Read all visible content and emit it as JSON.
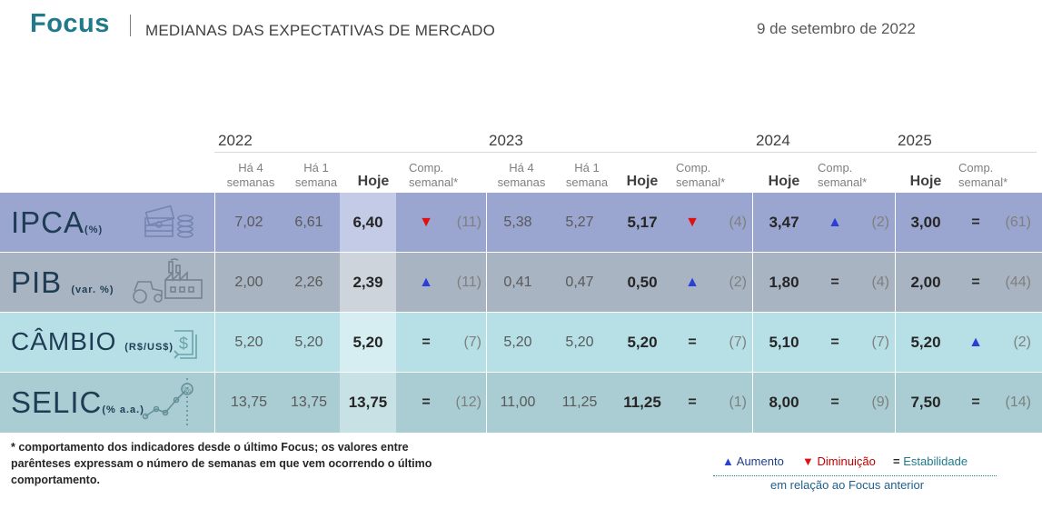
{
  "header": {
    "brand": "Focus",
    "subtitle": "MEDIANAS DAS EXPECTATIVAS DE MERCADO",
    "date": "9 de setembro de 2022"
  },
  "years": {
    "y2022": "2022",
    "y2023": "2023",
    "y2024": "2024",
    "y2025": "2025"
  },
  "columns": {
    "ha4": "Há 4 semanas",
    "ha4_a": "Há 4",
    "ha4_b": "semanas",
    "ha1_a": "Há 1",
    "ha1_b": "semana",
    "hoje": "Hoje",
    "comp_a": "Comp.",
    "comp_b": "semanal*"
  },
  "rows": [
    {
      "name": "IPCA",
      "unit": "(%)",
      "y2022": {
        "ha4": "7,02",
        "ha1": "6,61",
        "hoje": "6,40",
        "trend": "down",
        "weeks": "(11)"
      },
      "y2023": {
        "ha4": "5,38",
        "ha1": "5,27",
        "hoje": "5,17",
        "trend": "down",
        "weeks": "(4)"
      },
      "y2024": {
        "hoje": "3,47",
        "trend": "up",
        "weeks": "(2)"
      },
      "y2025": {
        "hoje": "3,00",
        "trend": "eq",
        "weeks": "(61)"
      }
    },
    {
      "name": "PIB",
      "unit": "(var. %)",
      "y2022": {
        "ha4": "2,00",
        "ha1": "2,26",
        "hoje": "2,39",
        "trend": "up",
        "weeks": "(11)"
      },
      "y2023": {
        "ha4": "0,41",
        "ha1": "0,47",
        "hoje": "0,50",
        "trend": "up",
        "weeks": "(2)"
      },
      "y2024": {
        "hoje": "1,80",
        "trend": "eq",
        "weeks": "(4)"
      },
      "y2025": {
        "hoje": "2,00",
        "trend": "eq",
        "weeks": "(44)"
      }
    },
    {
      "name": "CÂMBIO",
      "unit": "(R$/US$)",
      "y2022": {
        "ha4": "5,20",
        "ha1": "5,20",
        "hoje": "5,20",
        "trend": "eq",
        "weeks": "(7)"
      },
      "y2023": {
        "ha4": "5,20",
        "ha1": "5,20",
        "hoje": "5,20",
        "trend": "eq",
        "weeks": "(7)"
      },
      "y2024": {
        "hoje": "5,10",
        "trend": "eq",
        "weeks": "(7)"
      },
      "y2025": {
        "hoje": "5,20",
        "trend": "up",
        "weeks": "(2)"
      }
    },
    {
      "name": "SELIC",
      "unit": "(% a.a.)",
      "y2022": {
        "ha4": "13,75",
        "ha1": "13,75",
        "hoje": "13,75",
        "trend": "eq",
        "weeks": "(12)"
      },
      "y2023": {
        "ha4": "11,00",
        "ha1": "11,25",
        "hoje": "11,25",
        "trend": "eq",
        "weeks": "(1)"
      },
      "y2024": {
        "hoje": "8,00",
        "trend": "eq",
        "weeks": "(9)"
      },
      "y2025": {
        "hoje": "7,50",
        "trend": "eq",
        "weeks": "(14)"
      }
    }
  ],
  "symbols": {
    "up": "▲",
    "down": "▼",
    "eq": "="
  },
  "colors": {
    "up": "#2b3fd6",
    "down": "#e01010",
    "eq": "#262626",
    "ipca_row": "#9aa6cf",
    "pib_row": "#a8b4c1",
    "cambio_row": "#b7e0e6",
    "selic_row": "#a9cdd2",
    "hoje_ipca": "#c3cbe6",
    "hoje_pib": "#cdd4dc",
    "hoje_cambio": "#d6eef1",
    "hoje_selic": "#c7e1e4"
  },
  "footer": {
    "note": "* comportamento dos indicadores desde o último Focus; os valores entre parênteses expressam o número de semanas em que vem ocorrendo o último comportamento.",
    "legend_up": "Aumento",
    "legend_down": "Diminuição",
    "legend_eq": "Estabilidade",
    "legend_foot": "em relação ao Focus anterior"
  }
}
